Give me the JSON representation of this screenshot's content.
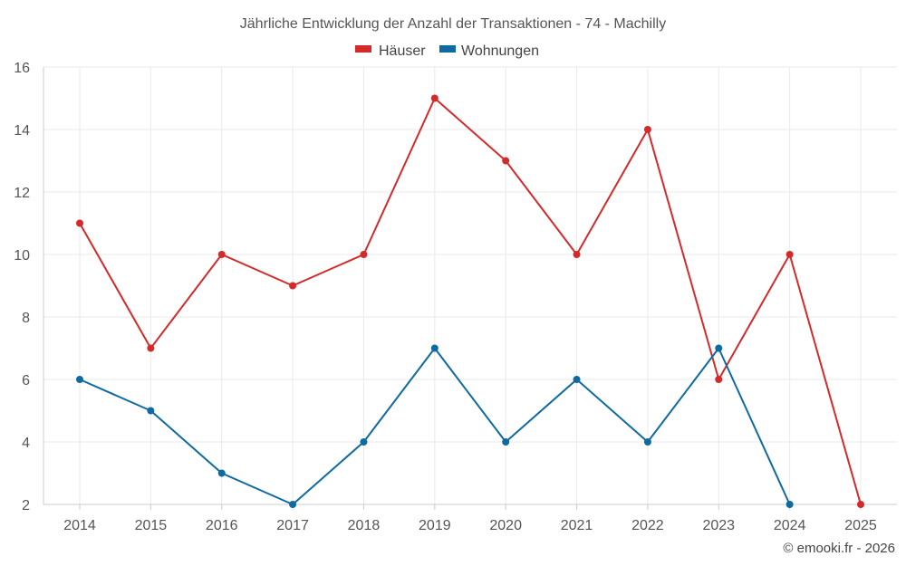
{
  "chart_data": {
    "type": "line",
    "title": "Jährliche Entwicklung der Anzahl der Transaktionen - 74 - Machilly",
    "categories": [
      "2014",
      "2015",
      "2016",
      "2017",
      "2018",
      "2019",
      "2020",
      "2021",
      "2022",
      "2023",
      "2024",
      "2025"
    ],
    "series": [
      {
        "name": "Häuser",
        "color": "#d42a2a",
        "values": [
          11,
          7,
          10,
          9,
          10,
          15,
          13,
          10,
          14,
          6,
          10,
          2
        ]
      },
      {
        "name": "Wohnungen",
        "color": "#0f6aa1",
        "values": [
          6,
          5,
          3,
          2,
          4,
          7,
          4,
          6,
          4,
          7,
          2,
          null
        ]
      }
    ],
    "ylim": [
      2,
      16
    ],
    "yticks": [
      2,
      4,
      6,
      8,
      10,
      12,
      14,
      16
    ],
    "xlabel": "",
    "ylabel": "",
    "grid": true,
    "legend": "top-center"
  },
  "credit": "© emooki.fr - 2026"
}
